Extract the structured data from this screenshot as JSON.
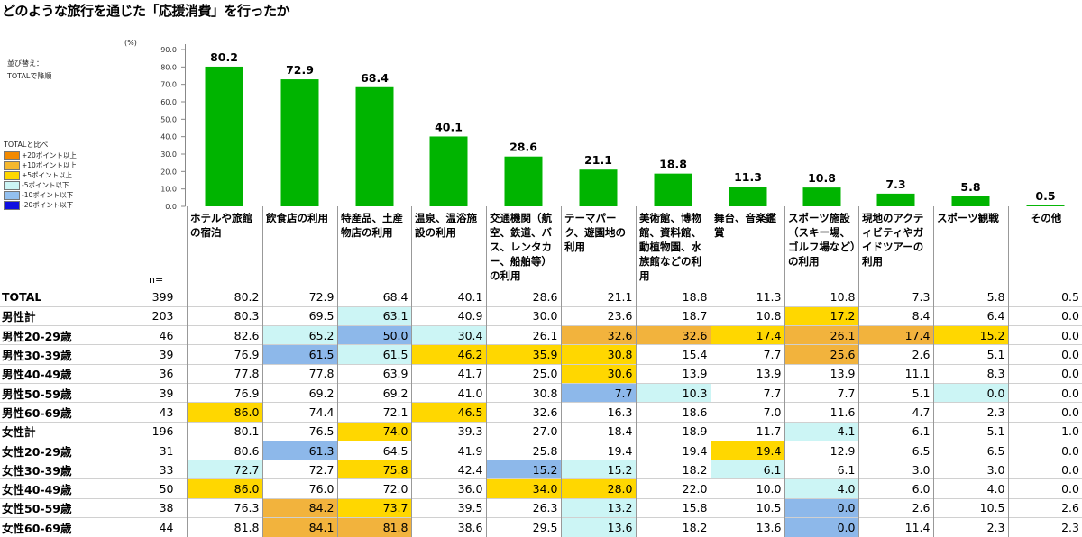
{
  "title": "どのような旅行を通じた「応援消費」を行ったか",
  "sort": {
    "label": "並び替え：",
    "value": "TOTALで降順"
  },
  "unit": "(%)",
  "legend": {
    "title": "TOTALと比べ",
    "items": [
      {
        "label": "+20ポイント以上",
        "color": "#f28a00"
      },
      {
        "label": "+10ポイント以上",
        "color": "#f5b82e"
      },
      {
        "label": "+5ポイント以上",
        "color": "#ffd700"
      },
      {
        "label": "-5ポイント以下",
        "color": "#ccf5f5"
      },
      {
        "label": "-10ポイント以下",
        "color": "#93c0f0"
      },
      {
        "label": "-20ポイント以下",
        "color": "#1010e0"
      }
    ]
  },
  "n_label": "n=",
  "chart_data": {
    "type": "bar",
    "categories": [
      "ホテルや旅館の宿泊",
      "飲食店の利用",
      "特産品、土産物店の利用",
      "温泉、温浴施設の利用",
      "交通機関（航空、鉄道、バス、レンタカー、船舶等）の利用",
      "テーマパーク、遊園地の利用",
      "美術館、博物館、資料館、動植物園、水族館などの利用",
      "舞台、音楽鑑賞",
      "スポーツ施設（スキー場、ゴルフ場など）の利用",
      "現地のアクティビティやガイドツアーの利用",
      "スポーツ観戦",
      "その他"
    ],
    "values": [
      80.2,
      72.9,
      68.4,
      40.1,
      28.6,
      21.1,
      18.8,
      11.3,
      10.8,
      7.3,
      5.8,
      0.5
    ],
    "value_labels": [
      "80.2",
      "72.9",
      "68.4",
      "40.1",
      "28.6",
      "21.1",
      "18.8",
      "11.3",
      "10.8",
      "7.3",
      "5.8",
      "0.5"
    ],
    "yticks": [
      "90.0",
      "80.0",
      "70.0",
      "60.0",
      "50.0",
      "40.0",
      "30.0",
      "20.0",
      "10.0",
      "0.0"
    ],
    "ylim": [
      0,
      90
    ],
    "bar_color": "#00b400",
    "grid": false,
    "legend_position": "left"
  },
  "table": {
    "rows": [
      {
        "label": "TOTAL",
        "n": "399",
        "values": [
          "80.2",
          "72.9",
          "68.4",
          "40.1",
          "28.6",
          "21.1",
          "18.8",
          "11.3",
          "10.8",
          "7.3",
          "5.8",
          "0.5"
        ],
        "colors": [
          "",
          "",
          "",
          "",
          "",
          "",
          "",
          "",
          "",
          "",
          "",
          ""
        ]
      },
      {
        "label": "男性計",
        "n": "203",
        "values": [
          "80.3",
          "69.5",
          "63.1",
          "40.9",
          "30.0",
          "23.6",
          "18.7",
          "10.8",
          "17.2",
          "8.4",
          "6.4",
          "0.0"
        ],
        "colors": [
          "",
          "",
          "c",
          "",
          "",
          "",
          "",
          "",
          "y",
          "",
          "",
          ""
        ]
      },
      {
        "label": "男性20-29歳",
        "n": "46",
        "values": [
          "82.6",
          "65.2",
          "50.0",
          "30.4",
          "26.1",
          "32.6",
          "32.6",
          "17.4",
          "26.1",
          "17.4",
          "15.2",
          "0.0"
        ],
        "colors": [
          "",
          "c",
          "b",
          "c",
          "",
          "o",
          "o",
          "y",
          "o",
          "o",
          "y",
          ""
        ]
      },
      {
        "label": "男性30-39歳",
        "n": "39",
        "values": [
          "76.9",
          "61.5",
          "61.5",
          "46.2",
          "35.9",
          "30.8",
          "15.4",
          "7.7",
          "25.6",
          "2.6",
          "5.1",
          "0.0"
        ],
        "colors": [
          "",
          "b",
          "c",
          "y",
          "y",
          "y",
          "",
          "",
          "o",
          "",
          "",
          ""
        ]
      },
      {
        "label": "男性40-49歳",
        "n": "36",
        "values": [
          "77.8",
          "77.8",
          "63.9",
          "41.7",
          "25.0",
          "30.6",
          "13.9",
          "13.9",
          "13.9",
          "11.1",
          "8.3",
          "0.0"
        ],
        "colors": [
          "",
          "",
          "",
          "",
          "",
          "y",
          "",
          "",
          "",
          "",
          "",
          ""
        ]
      },
      {
        "label": "男性50-59歳",
        "n": "39",
        "values": [
          "76.9",
          "69.2",
          "69.2",
          "41.0",
          "30.8",
          "7.7",
          "10.3",
          "7.7",
          "7.7",
          "5.1",
          "0.0",
          "0.0"
        ],
        "colors": [
          "",
          "",
          "",
          "",
          "",
          "b",
          "c",
          "",
          "",
          "",
          "c",
          ""
        ]
      },
      {
        "label": "男性60-69歳",
        "n": "43",
        "values": [
          "86.0",
          "74.4",
          "72.1",
          "46.5",
          "32.6",
          "16.3",
          "18.6",
          "7.0",
          "11.6",
          "4.7",
          "2.3",
          "0.0"
        ],
        "colors": [
          "y",
          "",
          "",
          "y",
          "",
          "",
          "",
          "",
          "",
          "",
          "",
          ""
        ]
      },
      {
        "label": "女性計",
        "n": "196",
        "values": [
          "80.1",
          "76.5",
          "74.0",
          "39.3",
          "27.0",
          "18.4",
          "18.9",
          "11.7",
          "4.1",
          "6.1",
          "5.1",
          "1.0"
        ],
        "colors": [
          "",
          "",
          "y",
          "",
          "",
          "",
          "",
          "",
          "c",
          "",
          "",
          ""
        ]
      },
      {
        "label": "女性20-29歳",
        "n": "31",
        "values": [
          "80.6",
          "61.3",
          "64.5",
          "41.9",
          "25.8",
          "19.4",
          "19.4",
          "19.4",
          "12.9",
          "6.5",
          "6.5",
          "0.0"
        ],
        "colors": [
          "",
          "b",
          "",
          "",
          "",
          "",
          "",
          "y",
          "",
          "",
          "",
          ""
        ]
      },
      {
        "label": "女性30-39歳",
        "n": "33",
        "values": [
          "72.7",
          "72.7",
          "75.8",
          "42.4",
          "15.2",
          "15.2",
          "18.2",
          "6.1",
          "6.1",
          "3.0",
          "3.0",
          "0.0"
        ],
        "colors": [
          "c",
          "",
          "y",
          "",
          "b",
          "c",
          "",
          "c",
          "",
          "",
          "",
          ""
        ]
      },
      {
        "label": "女性40-49歳",
        "n": "50",
        "values": [
          "86.0",
          "76.0",
          "72.0",
          "36.0",
          "34.0",
          "28.0",
          "22.0",
          "10.0",
          "4.0",
          "6.0",
          "4.0",
          "0.0"
        ],
        "colors": [
          "y",
          "",
          "",
          "",
          "y",
          "y",
          "",
          "",
          "c",
          "",
          "",
          ""
        ]
      },
      {
        "label": "女性50-59歳",
        "n": "38",
        "values": [
          "76.3",
          "84.2",
          "73.7",
          "39.5",
          "26.3",
          "13.2",
          "15.8",
          "10.5",
          "0.0",
          "2.6",
          "10.5",
          "2.6"
        ],
        "colors": [
          "",
          "o",
          "y",
          "",
          "",
          "c",
          "",
          "",
          "b",
          "",
          "",
          ""
        ]
      },
      {
        "label": "女性60-69歳",
        "n": "44",
        "values": [
          "81.8",
          "84.1",
          "81.8",
          "38.6",
          "29.5",
          "13.6",
          "18.2",
          "13.6",
          "0.0",
          "11.4",
          "2.3",
          "2.3"
        ],
        "colors": [
          "",
          "o",
          "o",
          "",
          "",
          "c",
          "",
          "",
          "b",
          "",
          "",
          ""
        ]
      }
    ]
  }
}
